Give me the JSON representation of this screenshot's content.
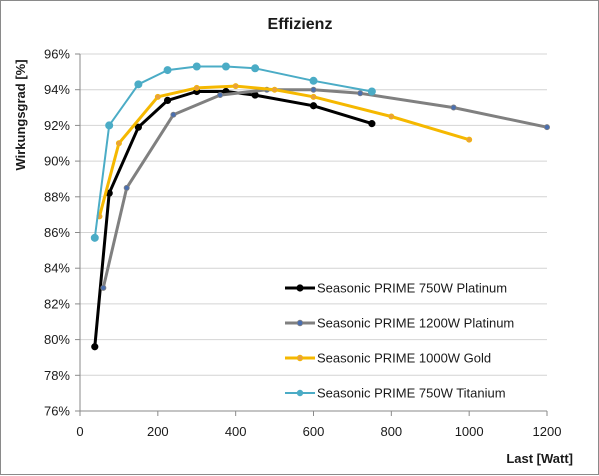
{
  "chart_data": {
    "type": "line",
    "title": "Effizienz",
    "xlabel": "Last [Watt]",
    "ylabel": "Wirkungsgrad [%]",
    "xlim": [
      0,
      1200
    ],
    "ylim": [
      76,
      96
    ],
    "xticks": [
      0,
      200,
      400,
      600,
      800,
      1000,
      1200
    ],
    "yticks": [
      76,
      78,
      80,
      82,
      84,
      86,
      88,
      90,
      92,
      94,
      96
    ],
    "ytick_suffix": "%",
    "grid": "horizontal",
    "legend_position": "bottom-right",
    "series": [
      {
        "name": "Seasonic PRIME 750W Platinum",
        "color": "#000000",
        "marker_fill": "#000000",
        "line_width": 3,
        "x": [
          38,
          75,
          150,
          225,
          300,
          375,
          450,
          600,
          750
        ],
        "y": [
          79.6,
          88.2,
          91.9,
          93.4,
          93.9,
          93.9,
          93.7,
          93.1,
          92.1
        ]
      },
      {
        "name": "Seasonic PRIME 1200W Platinum",
        "color": "#808080",
        "marker_fill": "#4a6fb0",
        "line_width": 3,
        "x": [
          60,
          120,
          240,
          360,
          480,
          600,
          720,
          960,
          1200
        ],
        "y": [
          82.9,
          88.5,
          92.6,
          93.7,
          94.0,
          94.0,
          93.8,
          93.0,
          91.9
        ]
      },
      {
        "name": "Seasonic PRIME 1000W Gold",
        "color": "#f5b800",
        "marker_fill": "#e8a040",
        "line_width": 3,
        "x": [
          50,
          100,
          200,
          300,
          400,
          500,
          600,
          800,
          1000
        ],
        "y": [
          86.9,
          91.0,
          93.6,
          94.1,
          94.2,
          94.0,
          93.6,
          92.5,
          91.2
        ]
      },
      {
        "name": "Seasonic PRIME 750W Titanium",
        "color": "#4bacc6",
        "marker_fill": "#4bacc6",
        "line_width": 2,
        "x": [
          38,
          75,
          150,
          225,
          300,
          375,
          450,
          600,
          750
        ],
        "y": [
          85.7,
          92.0,
          94.3,
          95.1,
          95.3,
          95.3,
          95.2,
          94.5,
          93.9
        ]
      }
    ]
  }
}
